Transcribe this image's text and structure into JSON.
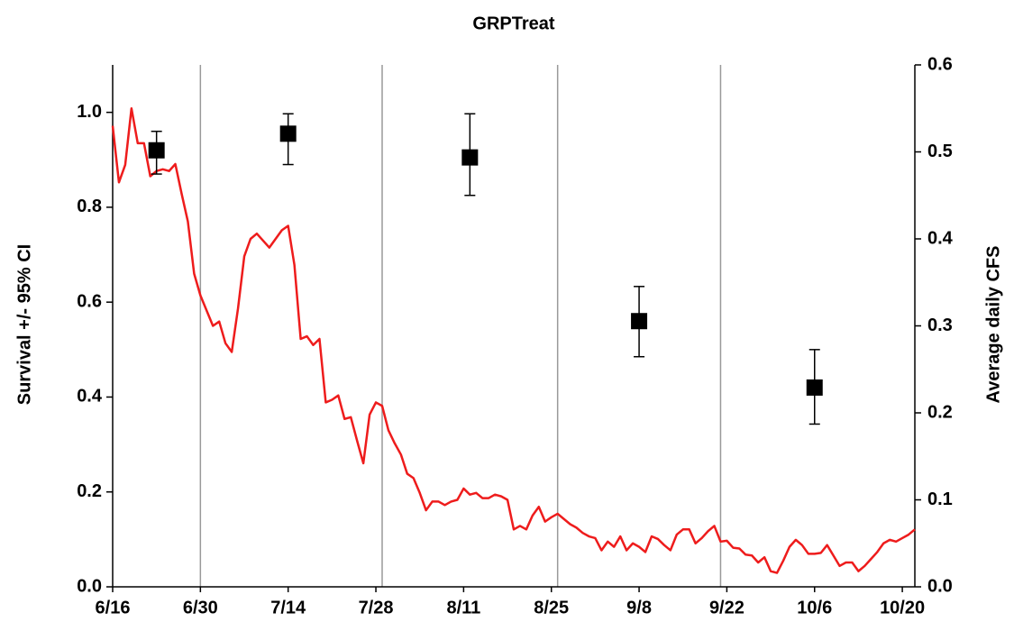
{
  "chart_data": {
    "type": "line",
    "title": "GRPTreat",
    "y_label": "Survival +/- 95% CI",
    "y2_label": "Average daily CFS",
    "xlim": [
      "6/16",
      "10/22"
    ],
    "xticks": [
      "6/16",
      "6/30",
      "7/14",
      "7/28",
      "8/11",
      "8/25",
      "9/8",
      "9/22",
      "10/6",
      "10/20"
    ],
    "ylim": [
      0,
      1.1
    ],
    "yticks": [
      {
        "value": 0,
        "label": "0.0"
      },
      0.2,
      0.4,
      0.6,
      0.8,
      {
        "value": 1,
        "label": "1.0"
      }
    ],
    "y2lim": [
      0,
      0.6
    ],
    "y2ticks": [
      {
        "value": 0,
        "label": "0.0"
      },
      0.1,
      0.2,
      0.3,
      0.4,
      0.5,
      0.6
    ],
    "vlines": [
      "6/30",
      "7/29",
      "8/26",
      "9/21"
    ],
    "survival": {
      "x": [
        "6/23",
        "7/14",
        "8/12",
        "9/8",
        "10/6"
      ],
      "values": [
        0.92,
        0.955,
        0.905,
        0.56,
        0.42
      ],
      "lower": [
        0.87,
        0.89,
        0.825,
        0.485,
        0.343
      ],
      "upper": [
        0.96,
        0.997,
        0.997,
        0.633,
        0.5
      ],
      "color": "#000000"
    },
    "series": [
      {
        "axis": "y2",
        "color": "#ee1c1c",
        "x": [
          "6/16",
          "6/17",
          "6/18",
          "6/19",
          "6/20",
          "6/21",
          "6/22",
          "6/23",
          "6/24",
          "6/25",
          "6/26",
          "6/27",
          "6/28",
          "6/29",
          "6/30",
          "7/2",
          "7/3",
          "7/4",
          "7/5",
          "7/6",
          "7/7",
          "7/8",
          "7/9",
          "7/10",
          "7/11",
          "7/12",
          "7/13",
          "7/14",
          "7/15",
          "7/16",
          "7/17",
          "7/18",
          "7/19",
          "7/20",
          "7/21",
          "7/22",
          "7/23",
          "7/24",
          "7/25",
          "7/26",
          "7/27",
          "7/28",
          "7/29",
          "7/30",
          "7/31",
          "8/1",
          "8/2",
          "8/3",
          "8/4",
          "8/5",
          "8/6",
          "8/7",
          "8/8",
          "8/9",
          "8/10",
          "8/11",
          "8/12",
          "8/13",
          "8/14",
          "8/15",
          "8/16",
          "8/17",
          "8/18",
          "8/19",
          "8/20",
          "8/21",
          "8/22",
          "8/23",
          "8/24",
          "8/25",
          "8/26",
          "8/27",
          "8/28",
          "8/29",
          "8/30",
          "8/31",
          "9/1",
          "9/2",
          "9/3",
          "9/4",
          "9/5",
          "9/6",
          "9/7",
          "9/8",
          "9/9",
          "9/10",
          "9/11",
          "9/12",
          "9/13",
          "9/14",
          "9/15",
          "9/16",
          "9/17",
          "9/18",
          "9/19",
          "9/20",
          "9/21",
          "9/22",
          "9/23",
          "9/24",
          "9/25",
          "9/26",
          "9/27",
          "9/28",
          "9/29",
          "9/30",
          "10/1",
          "10/2",
          "10/3",
          "10/4",
          "10/5",
          "10/6",
          "10/7",
          "10/8",
          "10/9",
          "10/10",
          "10/11",
          "10/12",
          "10/13",
          "10/14",
          "10/15",
          "10/16",
          "10/17",
          "10/18",
          "10/19",
          "10/20",
          "10/21",
          "10/22"
        ],
        "values": [
          0.53,
          0.465,
          0.485,
          0.55,
          0.51,
          0.51,
          0.472,
          0.478,
          0.48,
          0.478,
          0.486,
          0.452,
          0.42,
          0.36,
          0.335,
          0.3,
          0.305,
          0.28,
          0.27,
          0.32,
          0.38,
          0.4,
          0.406,
          0.398,
          0.39,
          0.4,
          0.41,
          0.415,
          0.37,
          0.285,
          0.288,
          0.278,
          0.285,
          0.212,
          0.215,
          0.22,
          0.193,
          0.195,
          0.168,
          0.142,
          0.198,
          0.212,
          0.208,
          0.18,
          0.165,
          0.152,
          0.13,
          0.125,
          0.108,
          0.088,
          0.098,
          0.098,
          0.094,
          0.098,
          0.1,
          0.113,
          0.106,
          0.108,
          0.102,
          0.102,
          0.106,
          0.104,
          0.1,
          0.066,
          0.07,
          0.066,
          0.082,
          0.092,
          0.075,
          0.08,
          0.084,
          0.078,
          0.072,
          0.068,
          0.062,
          0.058,
          0.056,
          0.042,
          0.052,
          0.046,
          0.058,
          0.042,
          0.05,
          0.046,
          0.04,
          0.058,
          0.055,
          0.048,
          0.042,
          0.06,
          0.066,
          0.066,
          0.05,
          0.056,
          0.064,
          0.07,
          0.052,
          0.053,
          0.045,
          0.044,
          0.037,
          0.036,
          0.028,
          0.034,
          0.018,
          0.016,
          0.03,
          0.046,
          0.054,
          0.048,
          0.038,
          0.038,
          0.039,
          0.048,
          0.036,
          0.024,
          0.028,
          0.028,
          0.018,
          0.024,
          0.032,
          0.04,
          0.05,
          0.054,
          0.052,
          0.056,
          0.06,
          0.066
        ]
      }
    ]
  }
}
